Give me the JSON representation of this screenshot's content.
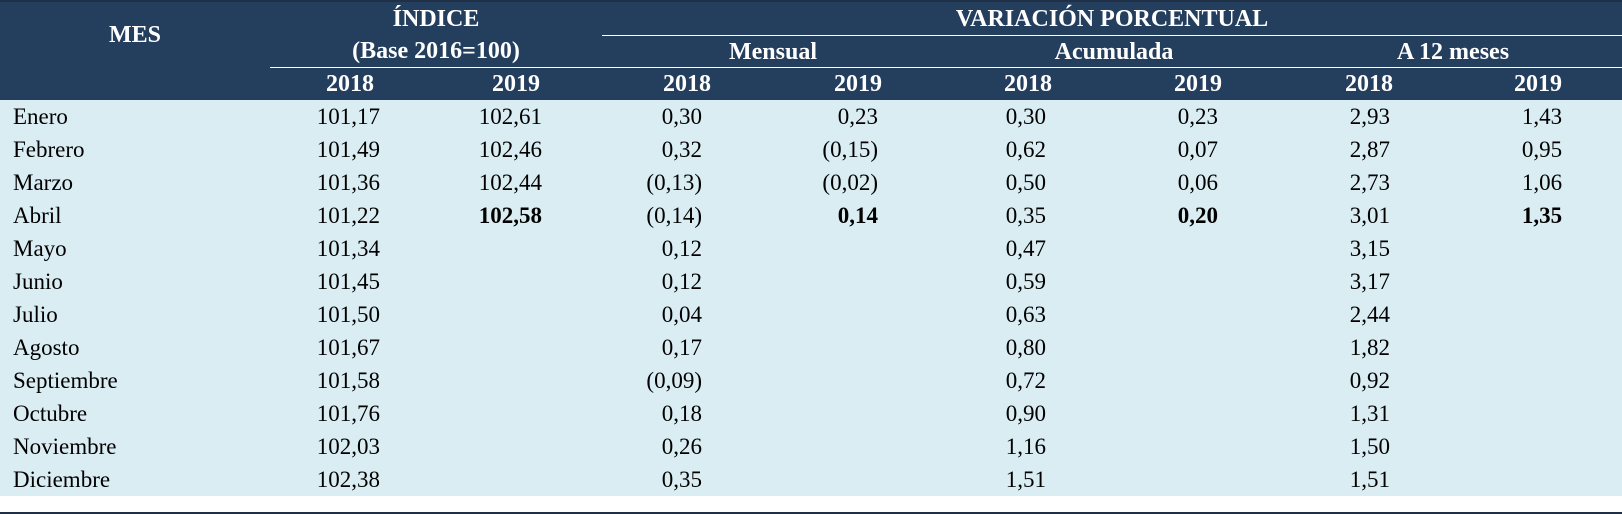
{
  "header": {
    "mes": "MES",
    "indice_line1": "ÍNDICE",
    "indice_line2": "(Base 2016=100)",
    "variacion": "VARIACIÓN PORCENTUAL",
    "mensual": "Mensual",
    "acumulada": "Acumulada",
    "a12": "A 12 meses",
    "years": [
      "2018",
      "2019",
      "2018",
      "2019",
      "2018",
      "2019",
      "2018",
      "2019"
    ]
  },
  "rows": [
    {
      "mes": "Enero",
      "idx2018": "101,17",
      "idx2019": "102,61",
      "men2018": "0,30",
      "men2019": "0,23",
      "acu2018": "0,30",
      "acu2019": "0,23",
      "a12_2018": "2,93",
      "a12_2019": "1,43"
    },
    {
      "mes": "Febrero",
      "idx2018": "101,49",
      "idx2019": "102,46",
      "men2018": "0,32",
      "men2019": "(0,15)",
      "acu2018": "0,62",
      "acu2019": "0,07",
      "a12_2018": "2,87",
      "a12_2019": "0,95"
    },
    {
      "mes": "Marzo",
      "idx2018": "101,36",
      "idx2019": "102,44",
      "men2018": "(0,13)",
      "men2019": "(0,02)",
      "acu2018": "0,50",
      "acu2019": "0,06",
      "a12_2018": "2,73",
      "a12_2019": "1,06"
    },
    {
      "mes": "Abril",
      "idx2018": "101,22",
      "idx2019": "102,58",
      "men2018": "(0,14)",
      "men2019": "0,14",
      "acu2018": "0,35",
      "acu2019": "0,20",
      "a12_2018": "3,01",
      "a12_2019": "1,35"
    },
    {
      "mes": "Mayo",
      "idx2018": "101,34",
      "idx2019": "",
      "men2018": "0,12",
      "men2019": "",
      "acu2018": "0,47",
      "acu2019": "",
      "a12_2018": "3,15",
      "a12_2019": ""
    },
    {
      "mes": "Junio",
      "idx2018": "101,45",
      "idx2019": "",
      "men2018": "0,12",
      "men2019": "",
      "acu2018": "0,59",
      "acu2019": "",
      "a12_2018": "3,17",
      "a12_2019": ""
    },
    {
      "mes": "Julio",
      "idx2018": "101,50",
      "idx2019": "",
      "men2018": "0,04",
      "men2019": "",
      "acu2018": "0,63",
      "acu2019": "",
      "a12_2018": "2,44",
      "a12_2019": ""
    },
    {
      "mes": "Agosto",
      "idx2018": "101,67",
      "idx2019": "",
      "men2018": "0,17",
      "men2019": "",
      "acu2018": "0,80",
      "acu2019": "",
      "a12_2018": "1,82",
      "a12_2019": ""
    },
    {
      "mes": "Septiembre",
      "idx2018": "101,58",
      "idx2019": "",
      "men2018": "(0,09)",
      "men2019": "",
      "acu2018": "0,72",
      "acu2019": "",
      "a12_2018": "0,92",
      "a12_2019": ""
    },
    {
      "mes": "Octubre",
      "idx2018": "101,76",
      "idx2019": "",
      "men2018": "0,18",
      "men2019": "",
      "acu2018": "0,90",
      "acu2019": "",
      "a12_2018": "1,31",
      "a12_2019": ""
    },
    {
      "mes": "Noviembre",
      "idx2018": "102,03",
      "idx2019": "",
      "men2018": "0,26",
      "men2019": "",
      "acu2018": "1,16",
      "acu2019": "",
      "a12_2018": "1,50",
      "a12_2019": ""
    },
    {
      "mes": "Diciembre",
      "idx2018": "102,38",
      "idx2019": "",
      "men2018": "0,35",
      "men2019": "",
      "acu2018": "1,51",
      "acu2019": "",
      "a12_2018": "1,51",
      "a12_2019": ""
    }
  ],
  "highlighted_row": "Abril",
  "colors": {
    "header_bg": "#243e5e",
    "body_bg": "#daedf3"
  }
}
